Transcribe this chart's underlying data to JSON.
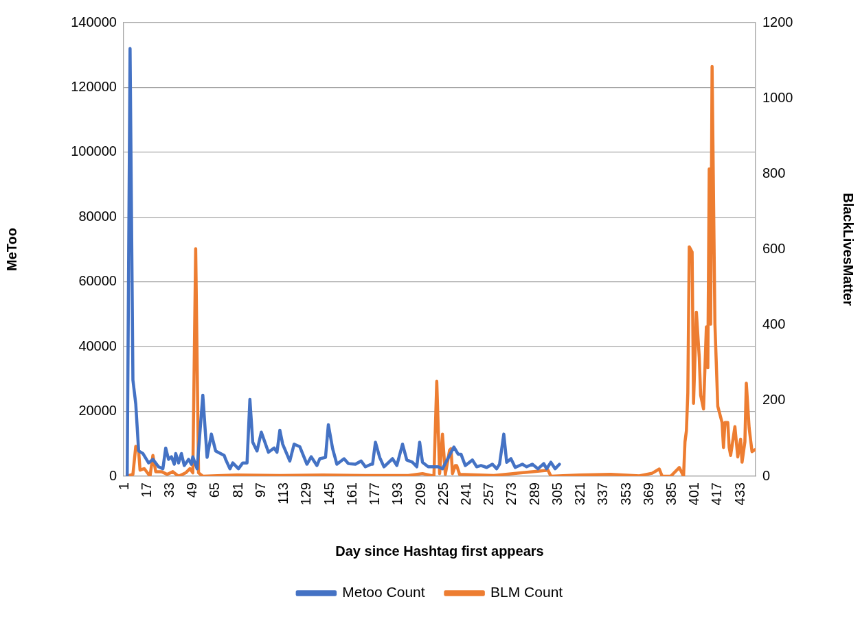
{
  "chart_data": {
    "type": "line",
    "xlabel": "Day since Hashtag first appears",
    "ylabel": "MeToo",
    "y2label": "BlackLivesMatter",
    "xlim": [
      0.5,
      443.5
    ],
    "xticks": [
      1,
      17,
      33,
      49,
      65,
      81,
      97,
      113,
      129,
      145,
      161,
      177,
      193,
      209,
      225,
      241,
      257,
      273,
      289,
      305,
      321,
      337,
      353,
      369,
      385,
      401,
      417,
      433
    ],
    "ylim": [
      0,
      140000
    ],
    "yticks": [
      0,
      20000,
      40000,
      60000,
      80000,
      100000,
      120000,
      140000
    ],
    "y2lim": [
      0,
      1200
    ],
    "y2ticks": [
      0,
      200,
      400,
      600,
      800,
      1000,
      1200
    ],
    "grid": "y",
    "legend": "bottom",
    "marker": "none",
    "line_style": "solid",
    "series": [
      {
        "name": "Metoo Count",
        "color": "#4472c4",
        "x": [
          3,
          5,
          7,
          9,
          11,
          14,
          18,
          21,
          25,
          28,
          30,
          32,
          34,
          36,
          37,
          39,
          41,
          43,
          46,
          48,
          49,
          52,
          56,
          59,
          62,
          65,
          71,
          72,
          75,
          77,
          81,
          84,
          87,
          89,
          91,
          94,
          97,
          102,
          106,
          108,
          110,
          112,
          117,
          120,
          124,
          129,
          132,
          136,
          138,
          142,
          144,
          147,
          150,
          155,
          158,
          163,
          167,
          170,
          174,
          175,
          177,
          180,
          183,
          189,
          192,
          196,
          199,
          203,
          206,
          208,
          210,
          214,
          218,
          221,
          224,
          232,
          235,
          237,
          240,
          245,
          248,
          251,
          255,
          259,
          262,
          264,
          267,
          269,
          272,
          275,
          280,
          283,
          287,
          291,
          295,
          297,
          300,
          303,
          306
        ],
        "values": [
          0,
          132000,
          29700,
          22300,
          7800,
          7000,
          4100,
          5200,
          2900,
          2300,
          8700,
          5200,
          6000,
          3700,
          7000,
          4100,
          7000,
          3300,
          5200,
          3700,
          6000,
          2300,
          25000,
          5800,
          13000,
          7800,
          6400,
          5200,
          2300,
          4100,
          2300,
          4100,
          4100,
          23700,
          10500,
          7800,
          13600,
          7400,
          8700,
          7400,
          14200,
          9900,
          4700,
          9900,
          9100,
          3700,
          6000,
          3300,
          5400,
          5800,
          15900,
          8500,
          3700,
          5400,
          3900,
          3700,
          4700,
          2900,
          3700,
          3700,
          10500,
          5800,
          2900,
          5400,
          3300,
          9900,
          5000,
          4300,
          2900,
          10500,
          4300,
          2900,
          2900,
          2900,
          2300,
          9000,
          6800,
          6800,
          3300,
          5000,
          2900,
          3300,
          2700,
          3700,
          2300,
          3700,
          13000,
          4300,
          5400,
          2700,
          3700,
          2900,
          3700,
          2300,
          3900,
          2300,
          4300,
          2300,
          3700
        ]
      },
      {
        "name": "BLM Count",
        "color": "#ed7d31",
        "axis": "y2",
        "x": [
          3,
          7,
          9,
          11,
          12,
          15,
          19,
          21,
          23,
          27,
          31,
          35,
          39,
          44,
          47,
          49,
          51,
          53,
          56,
          80,
          110,
          140,
          170,
          200,
          210,
          216,
          218,
          220,
          222,
          224,
          226,
          229,
          230,
          231,
          233,
          234,
          236,
          260,
          298,
          300,
          320,
          342,
          362,
          371,
          376,
          378,
          384,
          390,
          393,
          394,
          395,
          396,
          397,
          399,
          400,
          402,
          404,
          405,
          407,
          409,
          410,
          411,
          412,
          413,
          415,
          417,
          420,
          421,
          422,
          424,
          425,
          426,
          429,
          431,
          433,
          434,
          436,
          437,
          439,
          441,
          443
        ],
        "values": [
          0,
          5,
          79,
          67,
          16,
          20,
          0,
          55,
          12,
          12,
          5,
          12,
          0,
          9,
          20,
          9,
          602,
          9,
          0,
          3,
          2,
          3,
          2,
          2,
          7,
          2,
          0,
          251,
          7,
          111,
          5,
          69,
          73,
          7,
          28,
          28,
          5,
          2,
          16,
          0,
          3,
          5,
          1,
          8,
          19,
          0,
          0,
          23,
          0,
          91,
          120,
          221,
          607,
          593,
          193,
          434,
          315,
          214,
          178,
          395,
          287,
          813,
          402,
          1084,
          402,
          185,
          142,
          76,
          142,
          142,
          76,
          55,
          131,
          51,
          98,
          37,
          91,
          246,
          127,
          65,
          70
        ]
      }
    ]
  }
}
